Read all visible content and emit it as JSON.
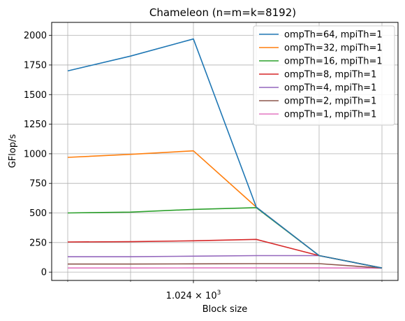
{
  "chart_data": {
    "type": "line",
    "title": "Chameleon (n=m=k=8192)",
    "xlabel": "Block size",
    "ylabel": "GFlop/s",
    "x_scale": "log",
    "x": [
      256,
      512,
      1024,
      2048,
      4096,
      8192
    ],
    "x_tick_label": {
      "base": "1.024 × 10",
      "exponent": "3"
    },
    "y_ticks": [
      0,
      250,
      500,
      750,
      1000,
      1250,
      1500,
      1750,
      2000
    ],
    "y_tick_labels": [
      "0",
      "250",
      "500",
      "750",
      "1000",
      "1250",
      "1500",
      "1750",
      "2000"
    ],
    "ylim": [
      -70,
      2110
    ],
    "grid": true,
    "legend_position": "top-right",
    "series": [
      {
        "name": "ompTh=64, mpiTh=1",
        "color": "#1f77b4",
        "values": [
          1700,
          1825,
          1970,
          550,
          140,
          35
        ]
      },
      {
        "name": "ompTh=32, mpiTh=1",
        "color": "#ff7f0e",
        "values": [
          970,
          995,
          1025,
          550,
          140,
          35
        ]
      },
      {
        "name": "ompTh=16, mpiTh=1",
        "color": "#2ca02c",
        "values": [
          500,
          507,
          530,
          545,
          140,
          35
        ]
      },
      {
        "name": "ompTh=8, mpiTh=1",
        "color": "#d62728",
        "values": [
          255,
          257,
          265,
          277,
          140,
          35
        ]
      },
      {
        "name": "ompTh=4, mpiTh=1",
        "color": "#9467bd",
        "values": [
          130,
          130,
          135,
          140,
          140,
          35
        ]
      },
      {
        "name": "ompTh=2, mpiTh=1",
        "color": "#8c564b",
        "values": [
          68,
          68,
          70,
          72,
          72,
          35
        ]
      },
      {
        "name": "ompTh=1, mpiTh=1",
        "color": "#e377c2",
        "values": [
          35,
          35,
          36,
          36,
          36,
          34
        ]
      }
    ]
  }
}
